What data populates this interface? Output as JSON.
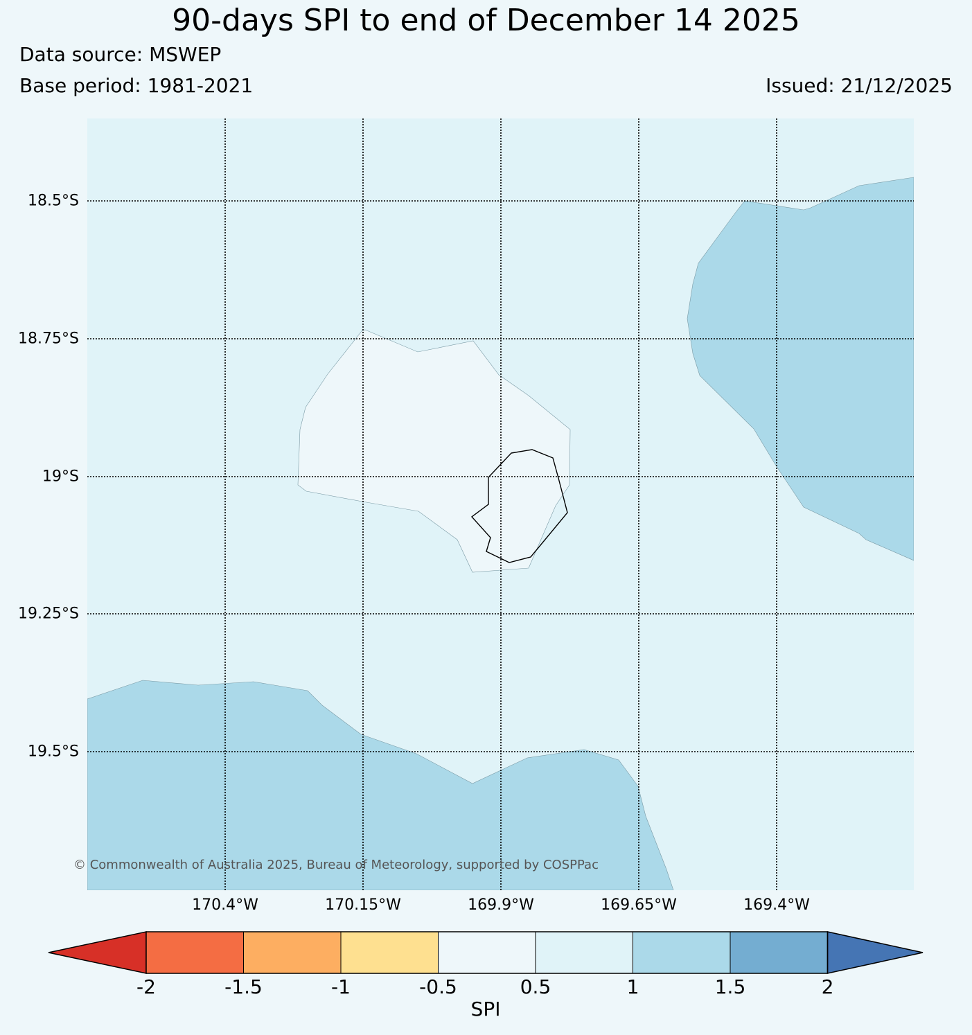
{
  "header": {
    "title": "90-days SPI to end of December 14 2025",
    "data_source": "Data source: MSWEP",
    "base_period": "Base period: 1981-2021",
    "issued": "Issued: 21/12/2025"
  },
  "map": {
    "background_class_color": "#e0f3f8",
    "latitude_labels": [
      "18.5°S",
      "18.75°S",
      "19°S",
      "19.25°S",
      "19.5°S"
    ],
    "longitude_labels": [
      "170.4°W",
      "170.15°W",
      "169.9°W",
      "169.65°W",
      "169.4°W"
    ],
    "copyright": "© Commonwealth of Australia 2025, Bureau of Meteorology, supported by COSPPac",
    "region_colors": {
      "spi_0_5_to_1": "#e0f3f8",
      "spi_1_to_1_5": "#abd9e9",
      "spi_minus_0_5_to_0_5": "#eef7fa"
    }
  },
  "colorbar": {
    "label": "SPI",
    "ticks": [
      "-2",
      "-1.5",
      "-1",
      "-0.5",
      "0.5",
      "1",
      "1.5",
      "2"
    ],
    "colors": [
      "#d73027",
      "#f46d43",
      "#fdae61",
      "#fee090",
      "#eef7fa",
      "#e0f3f8",
      "#abd9e9",
      "#74add1",
      "#4575b4"
    ]
  }
}
